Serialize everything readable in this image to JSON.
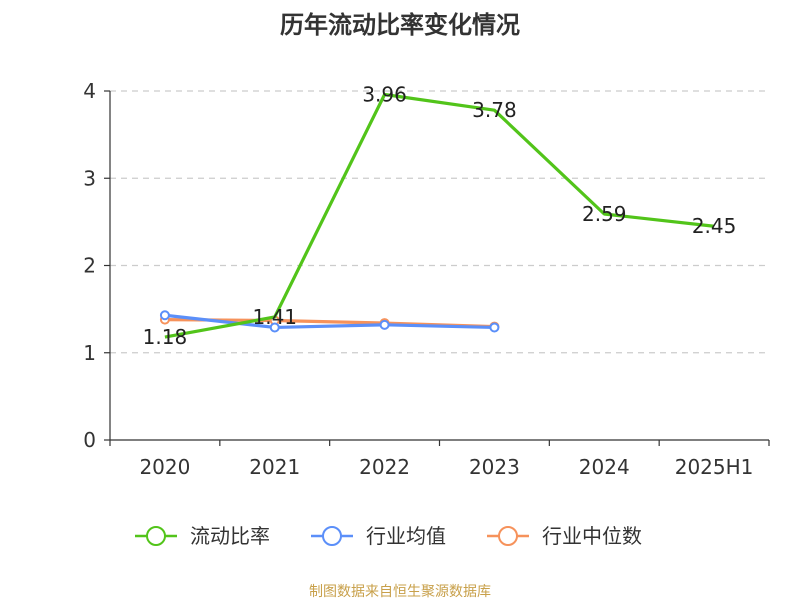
{
  "chart_data": {
    "type": "line",
    "title": "历年流动比率变化情况",
    "categories": [
      "2020",
      "2021",
      "2022",
      "2023",
      "2024",
      "2025H1"
    ],
    "ylim": [
      0,
      4
    ],
    "yticks": [
      0,
      1,
      2,
      3,
      4
    ],
    "grid": true,
    "legend_position": "bottom",
    "series": [
      {
        "name": "流动比率",
        "color": "#52c41a",
        "values": [
          1.18,
          1.41,
          3.96,
          3.78,
          2.59,
          2.45
        ],
        "labels": [
          "1.18",
          "1.41",
          "3.96",
          "3.78",
          "2.59",
          "2.45"
        ]
      },
      {
        "name": "行业均值",
        "color": "#5b8ff9",
        "values": [
          1.43,
          1.29,
          1.32,
          1.29,
          null,
          null
        ]
      },
      {
        "name": "行业中位数",
        "color": "#f6925b",
        "values": [
          1.38,
          1.37,
          1.34,
          1.3,
          null,
          null
        ]
      }
    ]
  },
  "footer": {
    "source": "制图数据来自恒生聚源数据库"
  }
}
